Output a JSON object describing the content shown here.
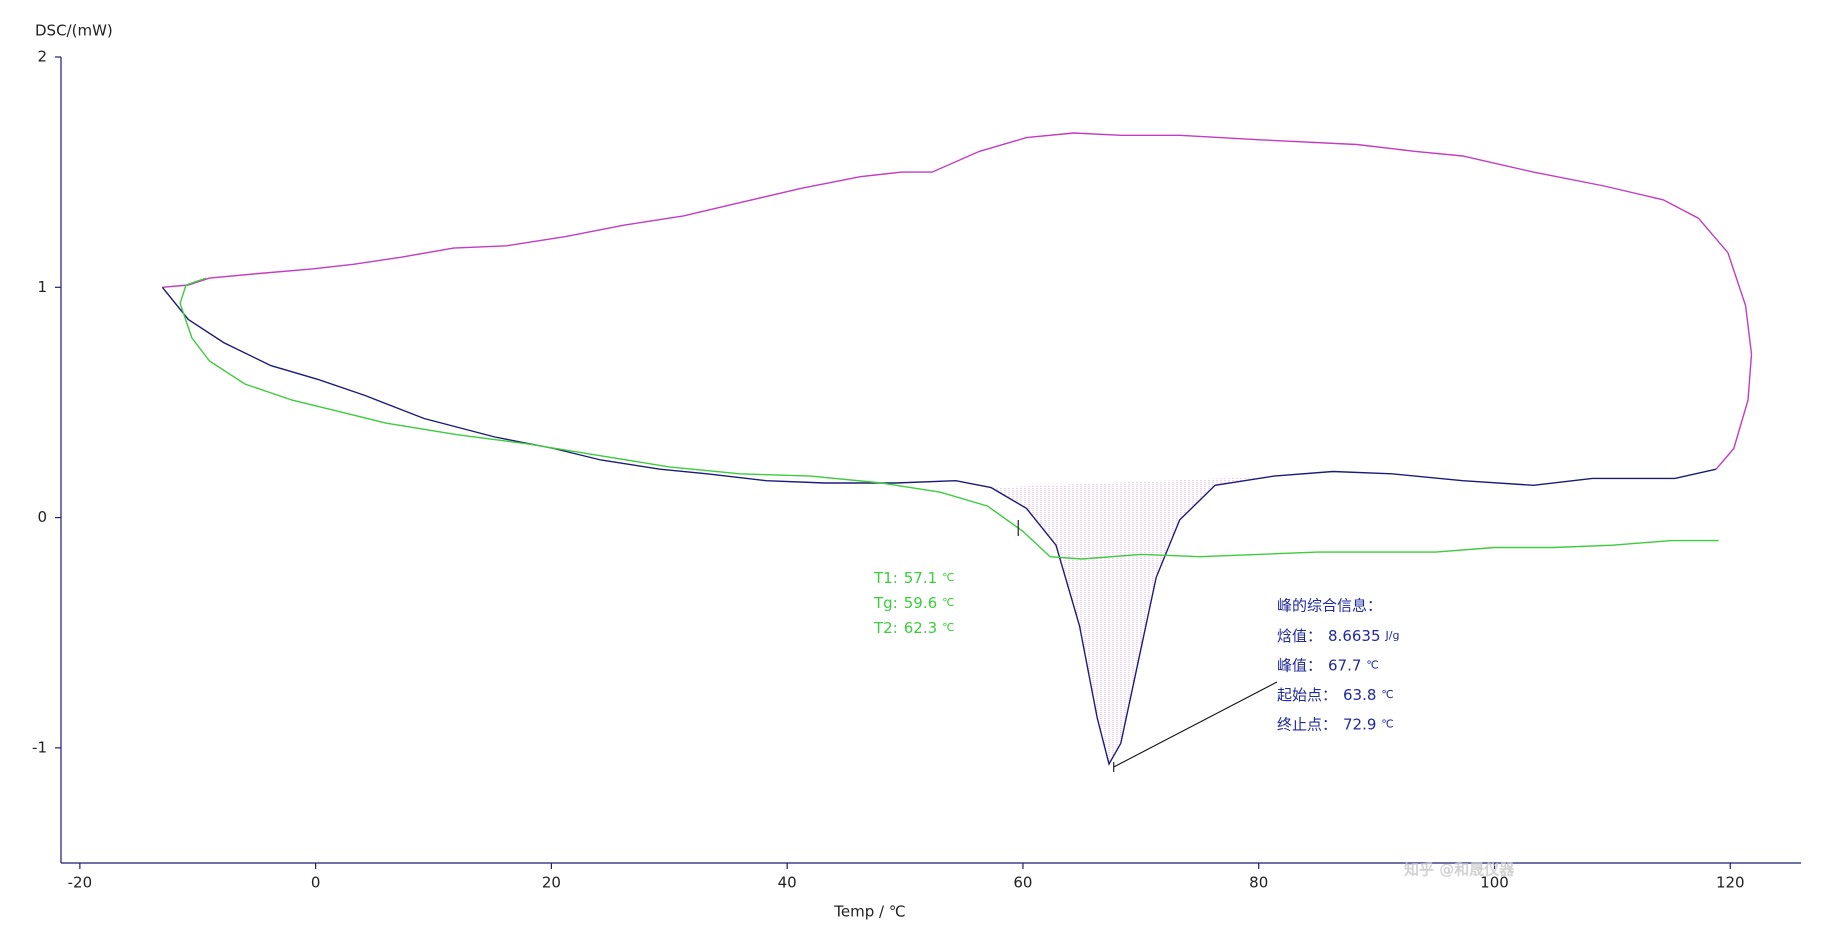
{
  "chart_data": {
    "type": "line",
    "y_label": "DSC/(mW)",
    "x_label": "Temp / ℃",
    "xlim": [
      -21.6,
      126
    ],
    "ylim": [
      -1.5,
      2
    ],
    "xticks": [
      -20,
      0,
      20,
      40,
      60,
      80,
      100,
      120
    ],
    "yticks": [
      -1,
      0,
      1,
      2
    ],
    "series": [
      {
        "color": "#c23cc2",
        "x": [
          -13.0,
          -10.8,
          -9.0,
          -4.8,
          -0.3,
          3.2,
          7.2,
          11.7,
          16.2,
          21.2,
          26.2,
          31.2,
          36.2,
          41.2,
          46.2,
          49.7,
          52.3,
          56.3,
          60.3,
          64.3,
          68.3,
          73.3,
          80.3,
          88.3,
          93.3,
          97.3,
          103.3,
          109.3,
          114.3,
          117.3,
          119.8,
          121.3,
          121.8,
          121.5,
          120.3,
          118.8
        ],
        "values": [
          1.0,
          1.01,
          1.04,
          1.06,
          1.08,
          1.1,
          1.13,
          1.17,
          1.18,
          1.22,
          1.27,
          1.31,
          1.37,
          1.43,
          1.48,
          1.5,
          1.5,
          1.59,
          1.65,
          1.67,
          1.66,
          1.66,
          1.64,
          1.62,
          1.59,
          1.57,
          1.5,
          1.44,
          1.38,
          1.3,
          1.15,
          0.92,
          0.71,
          0.51,
          0.3,
          0.21
        ]
      },
      {
        "color": "#1c1c78",
        "x": [
          -13.0,
          -10.8,
          -7.8,
          -3.8,
          0.2,
          4.2,
          9.2,
          15.2,
          20.2,
          24.2,
          29.2,
          33.2,
          38.2,
          43.2,
          49.2,
          54.3,
          57.3,
          60.3,
          62.8,
          64.8,
          66.3,
          67.3,
          68.3,
          69.8,
          71.3,
          73.3,
          76.3,
          81.3,
          86.3,
          91.3,
          97.3,
          103.3,
          108.3,
          115.3,
          118.8
        ],
        "values": [
          1.0,
          0.86,
          0.76,
          0.66,
          0.6,
          0.53,
          0.43,
          0.35,
          0.3,
          0.25,
          0.21,
          0.19,
          0.16,
          0.15,
          0.15,
          0.16,
          0.13,
          0.04,
          -0.12,
          -0.47,
          -0.87,
          -1.07,
          -0.98,
          -0.62,
          -0.26,
          -0.01,
          0.14,
          0.18,
          0.2,
          0.19,
          0.16,
          0.14,
          0.17,
          0.17,
          0.21
        ]
      },
      {
        "color": "#3ccc3c",
        "x": [
          -9.3,
          -11.0,
          -11.5,
          -10.5,
          -9.0,
          -6.0,
          -2.0,
          2.0,
          6.0,
          12.0,
          18.0,
          24.0,
          30.0,
          36.0,
          42.0,
          48.0,
          53.0,
          57.0,
          60.0,
          62.3,
          65.0,
          70.0,
          75.0,
          80.0,
          85.0,
          90.0,
          95.0,
          100.0,
          105.0,
          110.0,
          115.0,
          119.0
        ],
        "values": [
          1.04,
          1.01,
          0.93,
          0.78,
          0.68,
          0.58,
          0.51,
          0.46,
          0.41,
          0.36,
          0.32,
          0.27,
          0.22,
          0.19,
          0.18,
          0.15,
          0.11,
          0.05,
          -0.06,
          -0.17,
          -0.18,
          -0.16,
          -0.17,
          -0.16,
          -0.15,
          -0.15,
          -0.15,
          -0.13,
          -0.13,
          -0.12,
          -0.1,
          -0.1
        ]
      }
    ],
    "glass_transition": {
      "color": "#3ccc3c",
      "items": [
        {
          "name": "T1:",
          "value": 57.1,
          "unit": "℃"
        },
        {
          "name": "Tg:",
          "value": 59.6,
          "unit": "℃"
        },
        {
          "name": "T2:",
          "value": 62.3,
          "unit": "℃"
        }
      ]
    },
    "peak_info": {
      "color": "#1f2a9c",
      "title": "峰的综合信息：",
      "items": [
        {
          "name": "焓值：",
          "value": 8.6635,
          "unit": "J/g"
        },
        {
          "name": "峰值：",
          "value": 67.7,
          "unit": "℃"
        },
        {
          "name": "起始点：",
          "value": 63.8,
          "unit": "℃"
        },
        {
          "name": "终止点：",
          "value": 72.9,
          "unit": "℃"
        }
      ]
    },
    "watermark": "知乎 @和晟仪器"
  }
}
